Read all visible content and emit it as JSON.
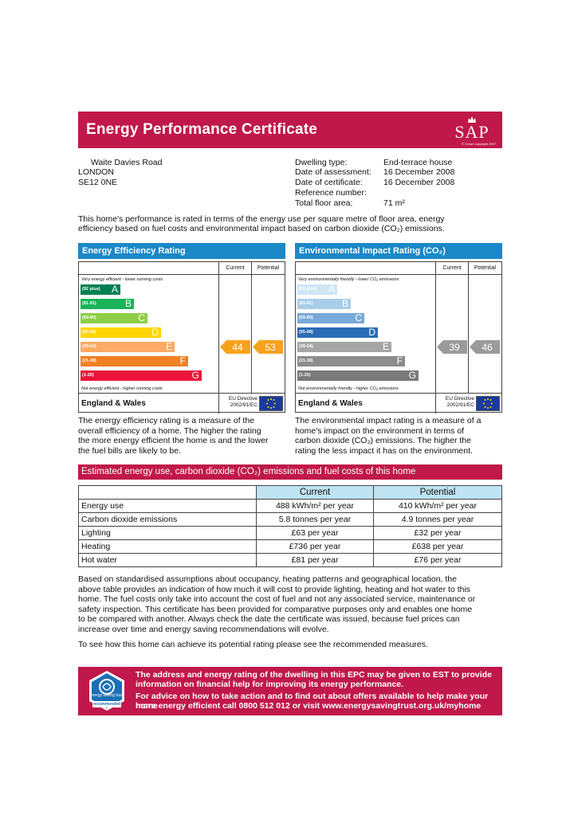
{
  "header": {
    "title": "Energy Performance Certificate",
    "logo_text": "SAP",
    "logo_copyright": "© Crown copyright 2007"
  },
  "address": {
    "line1": "Waite Davies Road",
    "line2": "LONDON",
    "line3": "SE12 0NE"
  },
  "details": [
    {
      "label": "Dwelling type:",
      "value": "End-terrace house"
    },
    {
      "label": "Date of assessment:",
      "value": "16 December 2008"
    },
    {
      "label": "Date of certificate:",
      "value": "16 December 2008"
    },
    {
      "label": "Reference number:",
      "value": ""
    },
    {
      "label": "Total floor area:",
      "value": "71 m²"
    }
  ],
  "intro": {
    "line1": "This home's performance is rated in terms of the energy use per square metre of floor area, energy",
    "line2": "efficiency based on fuel costs and environmental impact based on carbon dioxide (CO₂) emissions."
  },
  "energy_rating": {
    "title": "Energy Efficiency Rating",
    "col_current": "Current",
    "col_potential": "Potential",
    "top_note": "Very energy efficient - lower running costs",
    "bottom_note": "Not energy efficient - higher running costs",
    "region": "England & Wales",
    "directive": "EU Directive",
    "directive_code": "2002/91/EC",
    "current": 44,
    "potential": 53,
    "current_color": "#f7a21d",
    "potential_color": "#f7a21d",
    "bands": [
      {
        "range": "(92 plus)",
        "letter": "A",
        "color": "#008054"
      },
      {
        "range": "(81-91)",
        "letter": "B",
        "color": "#19b459"
      },
      {
        "range": "(69-80)",
        "letter": "C",
        "color": "#8dce46"
      },
      {
        "range": "(55-68)",
        "letter": "D",
        "color": "#ffd500"
      },
      {
        "range": "(39-54)",
        "letter": "E",
        "color": "#fcaa65"
      },
      {
        "range": "(21-38)",
        "letter": "F",
        "color": "#ef8023"
      },
      {
        "range": "(1-20)",
        "letter": "G",
        "color": "#e9153b"
      }
    ],
    "description": [
      "The energy efficiency rating is a measure of the",
      "overall efficiency of a home. The higher the rating",
      "the more energy efficient the home is and the lower",
      "the fuel bills are likely to be."
    ]
  },
  "environmental_rating": {
    "title": "Environmental Impact Rating (CO₂)",
    "col_current": "Current",
    "col_potential": "Potential",
    "top_note": "Very environmentally friendly - lower CO₂ emissions",
    "bottom_note": "Not environmentally friendly - higher CO₂ emissions",
    "region": "England & Wales",
    "directive": "EU Directive",
    "directive_code": "2002/91/EC",
    "current": 39,
    "potential": 46,
    "current_color": "#9b9b9b",
    "potential_color": "#9b9b9b",
    "bands": [
      {
        "range": "(92 plus)",
        "letter": "A",
        "color": "#cfe6f6"
      },
      {
        "range": "(81-91)",
        "letter": "B",
        "color": "#a9cdea"
      },
      {
        "range": "(69-80)",
        "letter": "C",
        "color": "#7aaad8"
      },
      {
        "range": "(55-68)",
        "letter": "D",
        "color": "#2b6cb6"
      },
      {
        "range": "(39-54)",
        "letter": "E",
        "color": "#a6a6a6"
      },
      {
        "range": "(21-38)",
        "letter": "F",
        "color": "#8c8c8c"
      },
      {
        "range": "(1-20)",
        "letter": "G",
        "color": "#7a7a7a"
      }
    ],
    "description": [
      "The environmental impact rating is a measure of a",
      "home's impact on the environment in terms of",
      "carbon dioxide (CO₂) emissions. The higher the",
      "rating the less impact it has on the environment."
    ]
  },
  "costs": {
    "title": "Estimated energy use, carbon dioxide (CO₂) emissions and fuel costs of this home",
    "col_current": "Current",
    "col_potential": "Potential",
    "rows": [
      {
        "label": "Energy use",
        "current": "488 kWh/m² per year",
        "potential": "410 kWh/m² per year"
      },
      {
        "label": "Carbon dioxide emissions",
        "current": "5.8 tonnes per year",
        "potential": "4.9 tonnes per year"
      },
      {
        "label": "Lighting",
        "current": "£63 per year",
        "potential": "£32 per year"
      },
      {
        "label": "Heating",
        "current": "£736 per year",
        "potential": "£638 per year"
      },
      {
        "label": "Hot water",
        "current": "£81 per year",
        "potential": "£76 per year"
      }
    ]
  },
  "assumptions": [
    "Based on standardised assumptions about occupancy, heating patterns and geographical location, the",
    "above table provides an indication of how much it will cost to provide lighting, heating and hot water to this",
    "home. The fuel costs only take into account the cost of fuel and not any associated service, maintenance or",
    "safety inspection. This certificate has been provided for comparative purposes only and enables one home",
    "to be compared with another. Always check the date the certificate was issued, because fuel prices can",
    "increase over time and energy saving recommendations will evolve."
  ],
  "recommend_text": "To see how this home can achieve its potential rating please see the recommended measures.",
  "footer": {
    "line1": "The address and energy rating of the dwelling in this EPC may be given to EST to provide",
    "line2": "information on financial help for improving its energy performance.",
    "line3": "For advice on how to take action and to find out about offers available to help make your home",
    "line4": "more energy efficient call 0800 512 012 or visit www.energysavingtrust.org.uk/myhome",
    "logo_top": "energy saving",
    "logo_trust": "trust",
    "logo_badge": "recommended"
  }
}
